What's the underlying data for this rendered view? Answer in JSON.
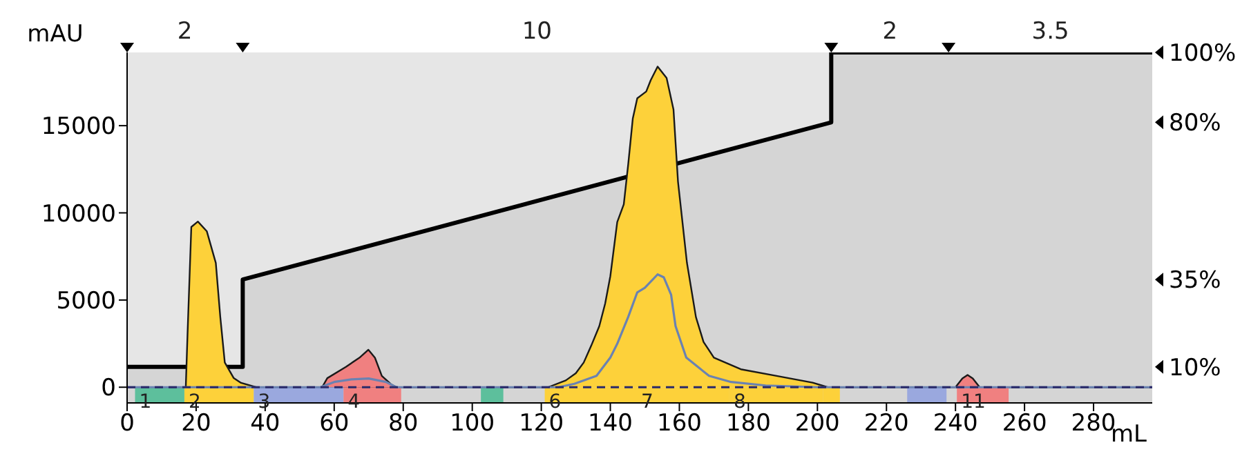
{
  "chart_data": {
    "type": "area",
    "xlabel": "mL",
    "ylabel": "mAU",
    "xlim": [
      0,
      297
    ],
    "xticks": [
      0,
      20,
      40,
      60,
      80,
      100,
      120,
      140,
      160,
      180,
      200,
      220,
      240,
      260,
      280
    ],
    "ylim": [
      -900,
      19200
    ],
    "yticks": [
      0,
      5000,
      10000,
      15000
    ],
    "y2lim": [
      -0.3,
      100
    ],
    "y2ticks": [
      {
        "value": 10,
        "label": "10%"
      },
      {
        "value": 35,
        "label": "35%"
      },
      {
        "value": 80,
        "label": "80%"
      },
      {
        "value": 100,
        "label": "100%"
      }
    ],
    "grid": false,
    "legend": false,
    "series": [
      {
        "axis": "y2",
        "color": "#000000",
        "x": [
          0,
          33.5,
          33.5,
          204,
          204,
          297
        ],
        "values": [
          10,
          10,
          35,
          80,
          100,
          100
        ]
      },
      {
        "color": "#fdd13a",
        "x": [
          0,
          17,
          17.5,
          18.6,
          20.5,
          23.1,
          25.7,
          27,
          28.3,
          30.9,
          33,
          37.4,
          122,
          127.1,
          130,
          132.3,
          134.5,
          136.8,
          138.5,
          140,
          142,
          143.9,
          145.2,
          146.5,
          147.8,
          150.4,
          151.7,
          153.7,
          156.3,
          158.3,
          159.6,
          162.2,
          164.8,
          167,
          170,
          177.8,
          188.2,
          198.6,
          203,
          297
        ],
        "values": [
          0,
          0,
          3000,
          9190,
          9500,
          8940,
          7130,
          4020,
          1420,
          520,
          250,
          0,
          0,
          390,
          800,
          1420,
          2400,
          3500,
          4800,
          6370,
          9470,
          10490,
          12820,
          15400,
          16570,
          16960,
          17610,
          18390,
          17740,
          15930,
          11800,
          7130,
          4020,
          2600,
          1700,
          1030,
          650,
          260,
          0,
          0
        ]
      },
      {
        "color": "#f08080",
        "x": [
          56.5,
          58,
          63.4,
          67.3,
          69.9,
          71.8,
          73.8,
          76.4,
          78,
          150,
          240,
          242,
          243.5,
          245,
          247
        ],
        "values": [
          0,
          520,
          1170,
          1690,
          2150,
          1690,
          650,
          180,
          0,
          null,
          0,
          500,
          700,
          500,
          0
        ]
      },
      {
        "type": "line",
        "color": "#6a82b2",
        "x": [
          0,
          56,
          60,
          65,
          70,
          75,
          78,
          125,
          129.6,
          136,
          140,
          142,
          145.2,
          147.8,
          150,
          153.7,
          155.5,
          157.6,
          158.9,
          162,
          168.6,
          175,
          185,
          200,
          297
        ],
        "values": [
          0,
          0,
          300,
          450,
          500,
          300,
          0,
          0,
          200,
          650,
          1700,
          2490,
          4040,
          5440,
          5700,
          6470,
          6300,
          5310,
          3500,
          1700,
          650,
          300,
          100,
          0,
          0
        ]
      },
      {
        "type": "line",
        "line_style": "dashed",
        "color": "#2a2a6a",
        "x": [
          0,
          297
        ],
        "values": [
          0,
          0
        ]
      }
    ],
    "annotations": [
      "2",
      "10",
      "2",
      "3.5"
    ],
    "bands": [
      {
        "axis": "x",
        "from": 2.3,
        "to": 16.6,
        "label": "1",
        "color": "#5dbf9c"
      },
      {
        "axis": "x",
        "from": 16.6,
        "to": 36.7,
        "label": "2",
        "color": "#fdd13a"
      },
      {
        "axis": "x",
        "from": 36.7,
        "to": 62.7,
        "label": "3",
        "color": "#9aa8de"
      },
      {
        "axis": "x",
        "from": 62.7,
        "to": 79.4,
        "label": "4",
        "color": "#f08080"
      },
      {
        "axis": "x",
        "from": 102.5,
        "to": 109,
        "color": "#5dbf9c"
      },
      {
        "axis": "x",
        "from": 121,
        "to": 147.7,
        "label": "6",
        "color": "#fdd13a"
      },
      {
        "axis": "x",
        "from": 147.7,
        "to": 174.5,
        "label": "7",
        "color": "#fdd13a"
      },
      {
        "axis": "x",
        "from": 174.5,
        "to": 201.7,
        "label": "8",
        "color": "#fdd13a"
      },
      {
        "axis": "x",
        "from": 201.7,
        "to": 206.5,
        "color": "#fdd13a"
      },
      {
        "axis": "x",
        "from": 226,
        "to": 237.4,
        "color": "#9aa8de"
      },
      {
        "axis": "x",
        "from": 240.4,
        "to": 255.4,
        "label": "11",
        "color": "#f08080"
      }
    ]
  }
}
